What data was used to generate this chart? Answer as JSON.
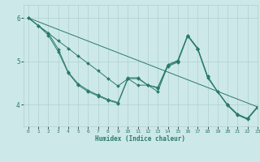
{
  "title": "",
  "xlabel": "Humidex (Indice chaleur)",
  "bg_color": "#cde8e8",
  "line_color": "#2a7a6a",
  "grid_color": "#b0d0d0",
  "xlim": [
    -0.5,
    23
  ],
  "ylim": [
    3.5,
    6.3
  ],
  "yticks": [
    4,
    5,
    6
  ],
  "xticks": [
    0,
    1,
    2,
    3,
    4,
    5,
    6,
    7,
    8,
    9,
    10,
    11,
    12,
    13,
    14,
    15,
    16,
    17,
    18,
    19,
    20,
    21,
    22,
    23
  ],
  "lines": [
    {
      "x": [
        0,
        1,
        2,
        3,
        4,
        5,
        6,
        7,
        8,
        9,
        10,
        11,
        12,
        13,
        14,
        15,
        16,
        17,
        18,
        19,
        20,
        21,
        22,
        23
      ],
      "y": [
        6.0,
        5.82,
        5.65,
        5.47,
        5.3,
        5.12,
        4.95,
        4.78,
        4.6,
        4.43,
        4.6,
        4.6,
        4.45,
        4.3,
        4.9,
        5.0,
        5.6,
        5.3,
        4.65,
        4.3,
        4.0,
        3.78,
        3.68,
        3.95
      ]
    },
    {
      "x": [
        0,
        1,
        2,
        3,
        4,
        5,
        6,
        7,
        8,
        9,
        10,
        11,
        12,
        13,
        14,
        15,
        16,
        17,
        18,
        19,
        20,
        21,
        22,
        23
      ],
      "y": [
        6.0,
        5.82,
        5.65,
        5.28,
        4.75,
        4.48,
        4.33,
        4.22,
        4.12,
        4.05,
        4.62,
        4.62,
        4.45,
        4.4,
        4.92,
        5.02,
        5.6,
        5.3,
        4.65,
        4.3,
        4.0,
        3.78,
        3.68,
        3.95
      ]
    },
    {
      "x": [
        0,
        1,
        2,
        3,
        4,
        5,
        6,
        7,
        8,
        9,
        10,
        11,
        12,
        13,
        14,
        15,
        16,
        17,
        18,
        20,
        21,
        22,
        23
      ],
      "y": [
        6.0,
        5.82,
        5.6,
        5.22,
        4.73,
        4.45,
        4.3,
        4.2,
        4.1,
        4.03,
        4.6,
        4.45,
        4.45,
        4.38,
        4.88,
        4.98,
        5.58,
        5.28,
        4.62,
        3.98,
        3.76,
        3.66,
        3.93
      ]
    },
    {
      "x": [
        0,
        23
      ],
      "y": [
        6.0,
        3.95
      ]
    }
  ]
}
